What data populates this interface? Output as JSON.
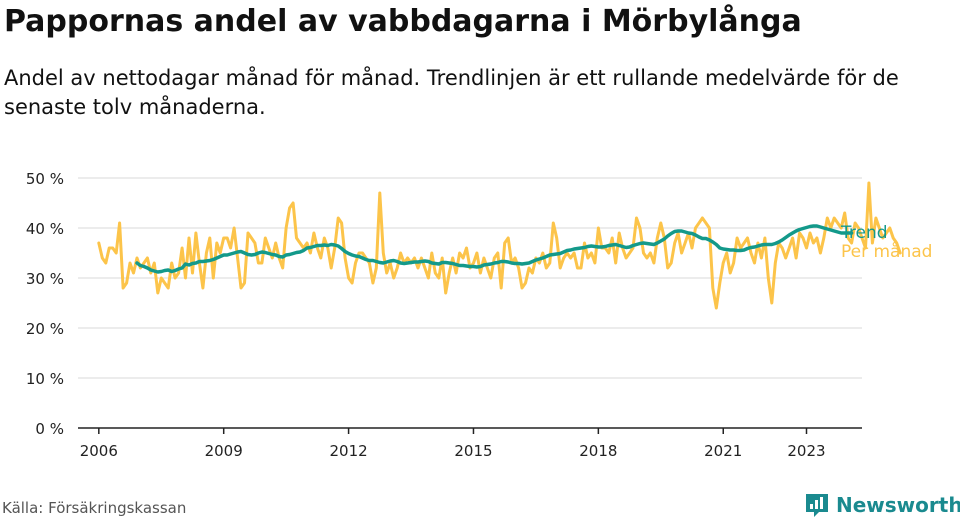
{
  "title": "Pappornas andel av vabbdagarna i Mörbylånga",
  "subtitle": "Andel av nettodagar månad för månad. Trendlinjen är ett rullande medelvärde för de senaste tolv månaderna.",
  "source": "Källa: Försäkringskassan",
  "brand": "Newsworthy",
  "colors": {
    "trend": "#13998a",
    "monthly": "#fcc44a",
    "grid": "#d9d9d9",
    "axis": "#222222",
    "brand": "#1a8a8f"
  },
  "icons": {
    "logo": "bar-chart-speech-bubble-icon"
  },
  "chart_data": {
    "type": "line",
    "x_unit": "month",
    "x_start": "2006-01",
    "xlim": [
      "2005-07",
      "2024-05"
    ],
    "ylim": [
      0,
      50
    ],
    "y_ticks": [
      0,
      10,
      20,
      30,
      40,
      50
    ],
    "y_tick_labels": [
      "0 %",
      "10 %",
      "20 %",
      "30 %",
      "40 %",
      "50 %"
    ],
    "x_ticks": [
      "2006-01",
      "2009-01",
      "2012-01",
      "2015-01",
      "2018-01",
      "2021-01",
      "2023-01"
    ],
    "x_tick_labels": [
      "2006",
      "2009",
      "2012",
      "2015",
      "2018",
      "2021",
      "2023"
    ],
    "grid": true,
    "legend": "direct-labels-right",
    "series": [
      {
        "name": "Per månad",
        "color": "#fcc44a",
        "start": "2006-01",
        "values": [
          37,
          34,
          33,
          36,
          36,
          35,
          41,
          28,
          29,
          33,
          31,
          34,
          32,
          33,
          34,
          31,
          33,
          27,
          30,
          29,
          28,
          33,
          30,
          31,
          36,
          30,
          38,
          31,
          39,
          33,
          28,
          35,
          38,
          30,
          37,
          35,
          38,
          38,
          36,
          40,
          34,
          28,
          29,
          39,
          38,
          37,
          33,
          33,
          38,
          36,
          34,
          37,
          34,
          32,
          40,
          44,
          45,
          38,
          37,
          36,
          37,
          35,
          39,
          36,
          34,
          38,
          36,
          32,
          36,
          42,
          41,
          34,
          30,
          29,
          33,
          35,
          35,
          34,
          33,
          29,
          32,
          47,
          35,
          31,
          33,
          30,
          32,
          35,
          33,
          34,
          33,
          34,
          32,
          34,
          32,
          30,
          35,
          31,
          30,
          34,
          27,
          31,
          34,
          31,
          35,
          34,
          36,
          32,
          33,
          35,
          31,
          34,
          32,
          30,
          34,
          35,
          28,
          37,
          38,
          33,
          34,
          32,
          28,
          29,
          32,
          31,
          34,
          33,
          35,
          32,
          33,
          41,
          38,
          32,
          34,
          35,
          34,
          35,
          32,
          32,
          37,
          34,
          35,
          33,
          40,
          36,
          36,
          35,
          38,
          33,
          39,
          36,
          34,
          35,
          36,
          42,
          40,
          35,
          34,
          35,
          33,
          38,
          41,
          38,
          32,
          33,
          37,
          39,
          35,
          37,
          39,
          36,
          40,
          41,
          42,
          41,
          40,
          28,
          24,
          29,
          33,
          35,
          31,
          33,
          38,
          36,
          37,
          38,
          35,
          33,
          37,
          34,
          38,
          30,
          25,
          33,
          37,
          36,
          34,
          36,
          38,
          34,
          39,
          38,
          36,
          39,
          37,
          38,
          35,
          38,
          42,
          40,
          42,
          41,
          40,
          43,
          38,
          37,
          41,
          40,
          38,
          36,
          49,
          37,
          42,
          40,
          38,
          39,
          40,
          38,
          37,
          35
        ]
      },
      {
        "name": "Trend",
        "color": "#13998a",
        "start": "2006-12",
        "values": [
          33.0,
          32.5,
          32.3,
          32.0,
          31.6,
          31.4,
          31.2,
          31.3,
          31.5,
          31.6,
          31.3,
          31.5,
          31.8,
          32.0,
          32.8,
          32.6,
          32.9,
          33.0,
          33.3,
          33.3,
          33.4,
          33.5,
          33.7,
          34.0,
          34.3,
          34.6,
          34.6,
          34.8,
          35.0,
          35.2,
          35.3,
          35.0,
          34.7,
          34.6,
          34.7,
          35.0,
          35.2,
          35.1,
          34.9,
          34.7,
          34.6,
          34.3,
          34.2,
          34.6,
          34.7,
          34.9,
          35.1,
          35.2,
          35.5,
          36.0,
          36.1,
          36.3,
          36.5,
          36.5,
          36.6,
          36.5,
          36.7,
          36.6,
          36.4,
          35.9,
          35.3,
          34.9,
          34.6,
          34.4,
          34.3,
          34.0,
          33.7,
          33.5,
          33.5,
          33.3,
          33.1,
          33.0,
          33.2,
          33.4,
          33.5,
          33.3,
          33.0,
          32.9,
          33.0,
          33.1,
          33.2,
          33.2,
          33.3,
          33.4,
          33.3,
          33.0,
          32.9,
          32.8,
          33.1,
          33.1,
          33.0,
          32.9,
          32.7,
          32.5,
          32.5,
          32.4,
          32.3,
          32.3,
          32.2,
          32.3,
          32.6,
          32.7,
          32.8,
          33.0,
          33.1,
          33.3,
          33.3,
          33.2,
          33.0,
          32.9,
          32.9,
          32.8,
          32.9,
          33.0,
          33.3,
          33.6,
          33.8,
          34.0,
          34.3,
          34.6,
          34.7,
          34.8,
          34.9,
          35.2,
          35.5,
          35.6,
          35.8,
          35.9,
          36.0,
          36.1,
          36.3,
          36.4,
          36.3,
          36.2,
          36.2,
          36.3,
          36.5,
          36.6,
          36.7,
          36.5,
          36.3,
          36.1,
          36.2,
          36.5,
          36.7,
          36.9,
          37.0,
          36.9,
          36.8,
          36.7,
          37.0,
          37.4,
          37.8,
          38.4,
          38.9,
          39.3,
          39.4,
          39.4,
          39.2,
          39.0,
          38.9,
          38.6,
          38.2,
          37.9,
          37.9,
          37.6,
          37.2,
          36.7,
          36.0,
          35.8,
          35.7,
          35.6,
          35.6,
          35.5,
          35.5,
          35.6,
          35.9,
          36.1,
          36.2,
          36.4,
          36.6,
          36.7,
          36.7,
          36.7,
          36.9,
          37.2,
          37.6,
          38.1,
          38.6,
          39.0,
          39.4,
          39.7,
          39.9,
          40.1,
          40.3,
          40.4,
          40.4,
          40.2,
          40.0,
          39.8,
          39.6,
          39.4,
          39.2,
          39.0,
          39.0,
          39.0,
          39.0
        ]
      }
    ]
  }
}
